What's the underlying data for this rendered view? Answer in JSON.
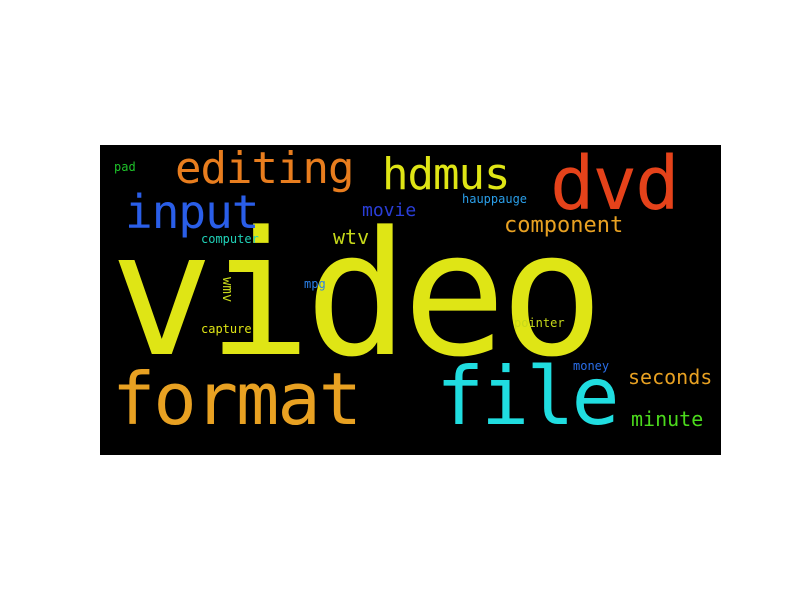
{
  "wordcloud": {
    "background": "#000000",
    "words": {
      "video": {
        "text": "video",
        "color": "#dfe515"
      },
      "format": {
        "text": "format",
        "color": "#e8a122"
      },
      "file": {
        "text": "file",
        "color": "#20dde0"
      },
      "dvd": {
        "text": "dvd",
        "color": "#e5421a"
      },
      "editing": {
        "text": "editing",
        "color": "#e87d1e"
      },
      "hdmus": {
        "text": "hdmus",
        "color": "#dfe515"
      },
      "input": {
        "text": "input",
        "color": "#2a5ee8"
      },
      "component": {
        "text": "component",
        "color": "#e8a122"
      },
      "seconds": {
        "text": "seconds",
        "color": "#e8a122"
      },
      "minute": {
        "text": "minute",
        "color": "#4bd91c"
      },
      "movie": {
        "text": "movie",
        "color": "#2a3ed8"
      },
      "wtv": {
        "text": "wtv",
        "color": "#c6d81a"
      },
      "pad": {
        "text": "pad",
        "color": "#1ec22a"
      },
      "computer": {
        "text": "computer",
        "color": "#20d2b8"
      },
      "mpg": {
        "text": "mpg",
        "color": "#2a80e8"
      },
      "capture": {
        "text": "capture",
        "color": "#dfe515"
      },
      "hauppauge": {
        "text": "hauppauge",
        "color": "#2a9ee8"
      },
      "pointer": {
        "text": "pointer",
        "color": "#c6d81a"
      },
      "money": {
        "text": "money",
        "color": "#2a6ee8"
      },
      "wmv": {
        "text": "wmv",
        "color": "#c6d81a"
      }
    }
  }
}
